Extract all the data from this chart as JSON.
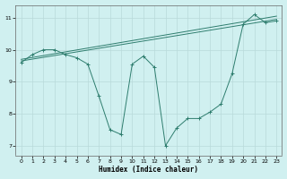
{
  "line1_x": [
    0,
    1,
    2,
    3,
    4,
    5,
    6,
    7,
    8,
    9,
    10,
    11,
    12,
    13,
    14,
    15,
    16,
    17,
    18,
    19,
    20,
    21,
    22,
    23
  ],
  "line1_y": [
    9.6,
    9.85,
    10.0,
    10.0,
    9.85,
    9.75,
    9.55,
    8.55,
    7.5,
    7.35,
    9.55,
    9.8,
    9.45,
    7.0,
    7.55,
    7.85,
    7.85,
    8.05,
    8.3,
    9.25,
    10.8,
    11.1,
    10.85,
    10.9
  ],
  "line2_x": [
    0,
    23
  ],
  "line2_y": [
    9.65,
    10.95
  ],
  "line3_x": [
    0,
    23
  ],
  "line3_y": [
    9.7,
    11.05
  ],
  "line_color": "#2e7d6e",
  "bg_color": "#d0f0f0",
  "grid_color": "#b8dada",
  "xlabel": "Humidex (Indice chaleur)",
  "ylim": [
    6.7,
    11.4
  ],
  "xlim": [
    -0.5,
    23.5
  ],
  "yticks": [
    7,
    8,
    9,
    10,
    11
  ],
  "xticks": [
    0,
    1,
    2,
    3,
    4,
    5,
    6,
    7,
    8,
    9,
    10,
    11,
    12,
    13,
    14,
    15,
    16,
    17,
    18,
    19,
    20,
    21,
    22,
    23
  ]
}
